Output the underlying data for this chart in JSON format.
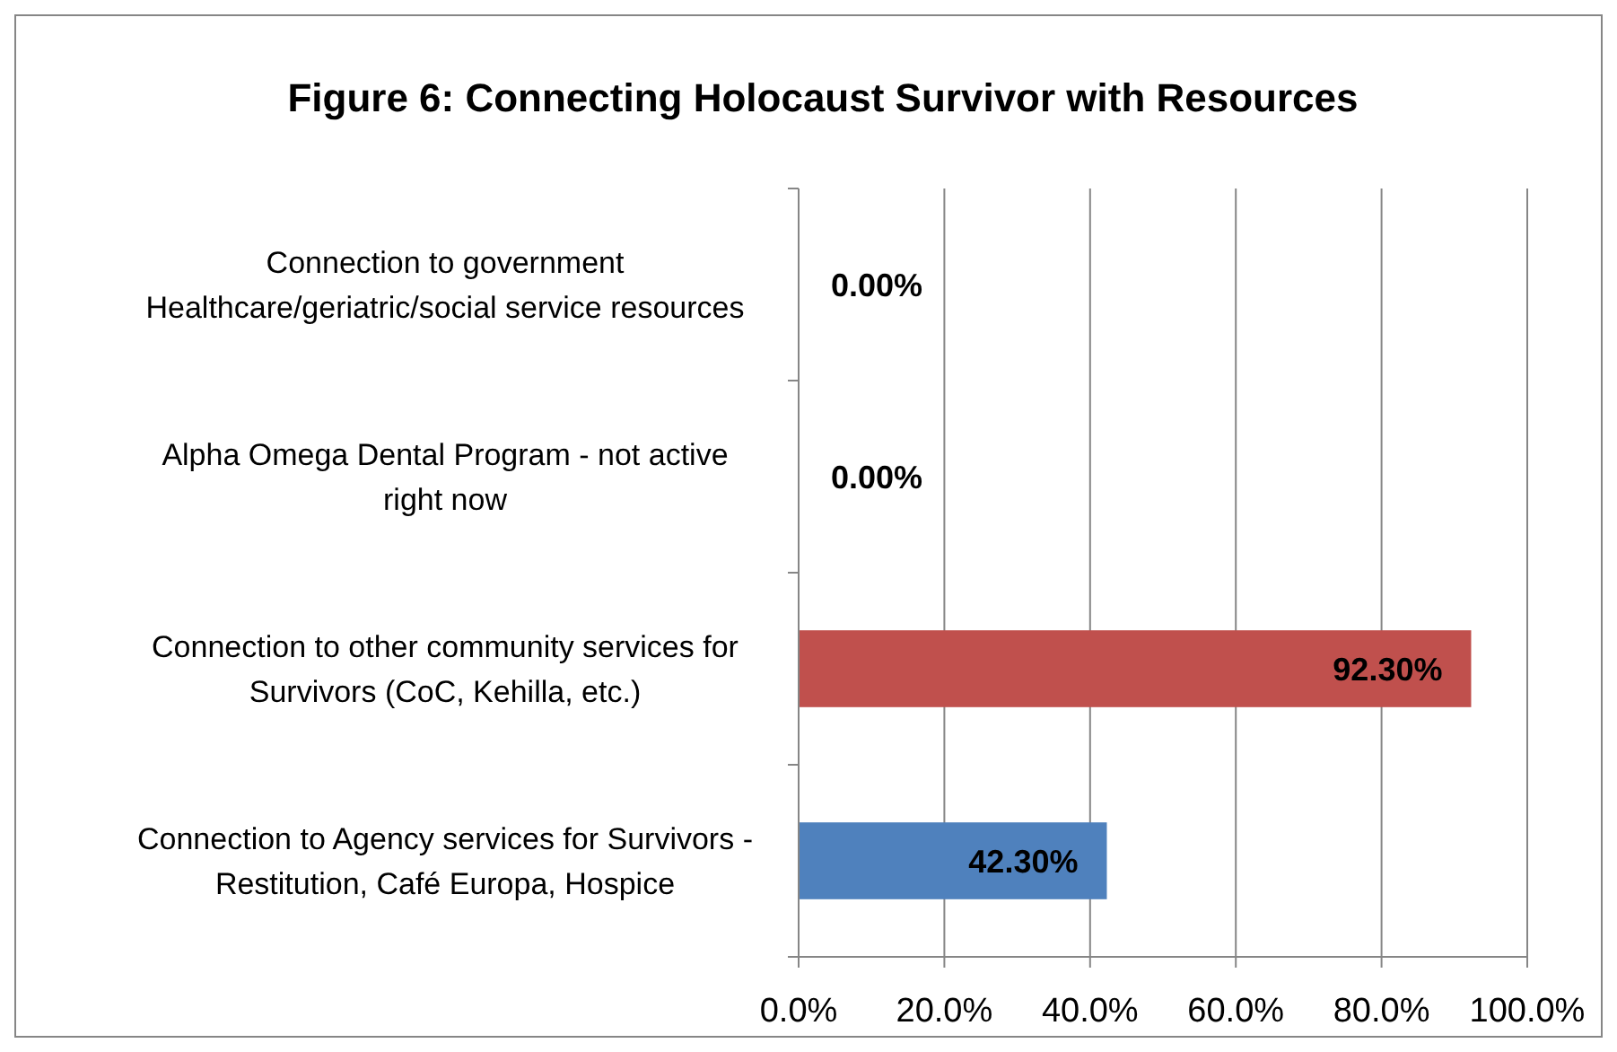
{
  "chart_data": {
    "type": "bar",
    "orientation": "horizontal",
    "title": "Figure 6: Connecting Holocaust Survivor with Resources",
    "categories": [
      "Connection to government Healthcare/geriatric/social service resources",
      "Alpha Omega Dental Program - not active right now",
      "Connection to other community services for Survivors (CoC, Kehilla, etc.)",
      "Connection to Agency services for Survivors - Restitution, Café Europa, Hospice"
    ],
    "values": [
      0,
      0,
      92.3,
      42.3
    ],
    "colors": [
      "#4f81bd",
      "#4f81bd",
      "#c0504d",
      "#4f81bd"
    ],
    "value_labels": [
      "0.00%",
      "0.00%",
      "92.30%",
      "42.30%"
    ],
    "xlim": [
      0,
      100
    ],
    "xticks": [
      {
        "value": 0,
        "label": "0.0%"
      },
      {
        "value": 20,
        "label": "20.0%"
      },
      {
        "value": 40,
        "label": "40.0%"
      },
      {
        "value": 60,
        "label": "60.0%"
      },
      {
        "value": 80,
        "label": "80.0%"
      },
      {
        "value": 100,
        "label": "100.0%"
      }
    ],
    "grid": "x"
  }
}
